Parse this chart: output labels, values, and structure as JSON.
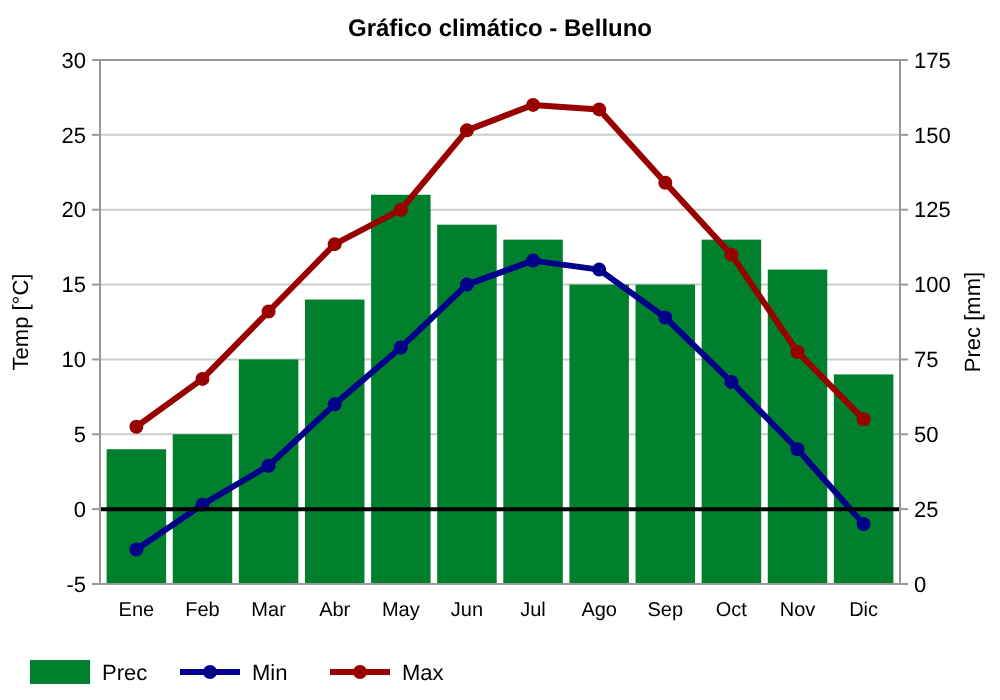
{
  "chart_data": {
    "type": "bar",
    "title": "Gráfico climático - Belluno",
    "ylabel": "Temp [°C]",
    "y2label": "Prec [mm]",
    "categories": [
      "Ene",
      "Feb",
      "Mar",
      "Abr",
      "May",
      "Jun",
      "Jul",
      "Ago",
      "Sep",
      "Oct",
      "Nov",
      "Dic"
    ],
    "series": [
      {
        "name": "Prec",
        "axis": "y2",
        "color": "#007f2c",
        "values": [
          45,
          50,
          75,
          95,
          130,
          120,
          115,
          100,
          100,
          115,
          105,
          70
        ]
      },
      {
        "name": "Min",
        "type": "line",
        "color": "#00008b",
        "values": [
          -2.7,
          0.3,
          2.9,
          7.0,
          10.8,
          15.0,
          16.6,
          16.0,
          12.8,
          8.5,
          4.0,
          -1.0
        ]
      },
      {
        "name": "Max",
        "type": "line",
        "color": "#990000",
        "values": [
          5.5,
          8.7,
          13.2,
          17.7,
          20.0,
          25.3,
          27.0,
          26.7,
          21.8,
          17.0,
          10.5,
          6.0
        ]
      }
    ],
    "ylim": [
      -5,
      30
    ],
    "yticks": [
      -5,
      0,
      5,
      10,
      15,
      20,
      25,
      30
    ],
    "y2lim": [
      0,
      175
    ],
    "y2ticks": [
      0,
      25,
      50,
      75,
      100,
      125,
      150,
      175
    ],
    "ref_lines": [
      {
        "axis": "y",
        "value": 0,
        "color": "#000000"
      }
    ],
    "grid": "y",
    "legend": "bottom",
    "marker": "circle",
    "line_style": "solid"
  }
}
